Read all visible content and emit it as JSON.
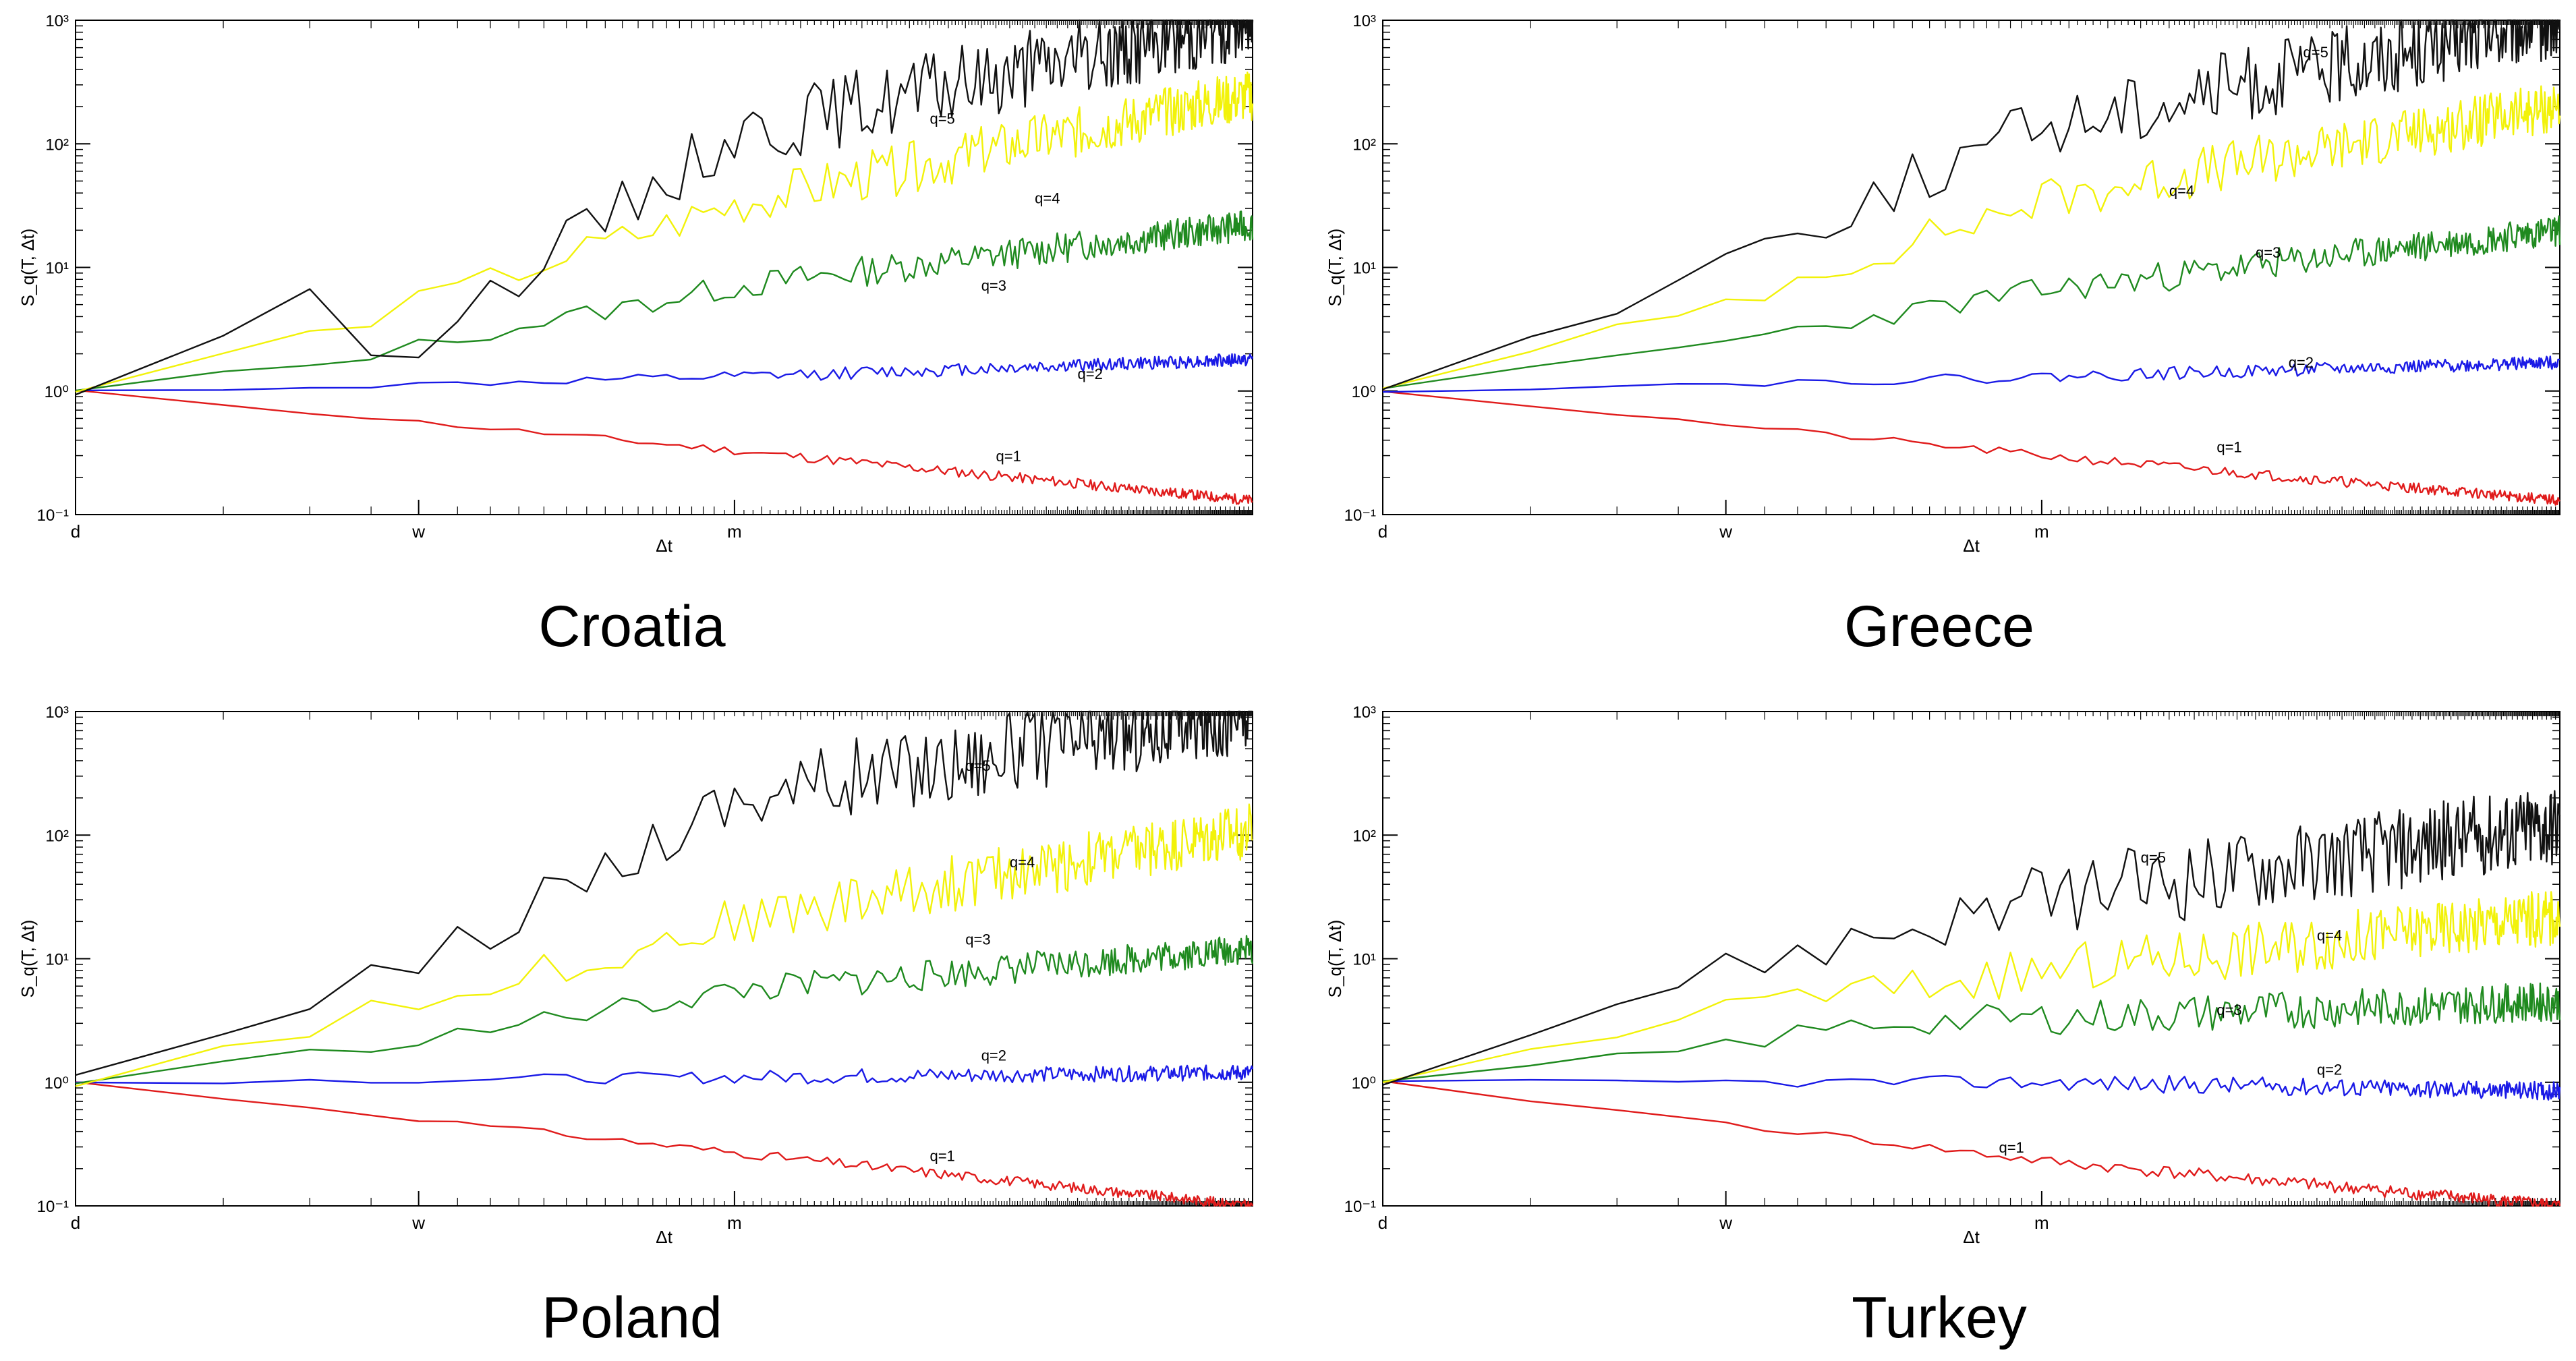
{
  "figure": {
    "panels_order": [
      "Croatia",
      "Greece",
      "Poland",
      "Turkey"
    ]
  },
  "chart_data": [
    {
      "type": "line",
      "country": "Croatia",
      "title": "Croatia",
      "xlabel": "Δt",
      "ylabel": "S_q(T, Δt)",
      "yscale": "log",
      "ylim": [
        0.1,
        1000
      ],
      "ytick_labels": [
        "10⁻¹",
        "10⁰",
        "10¹",
        "10²",
        "10³"
      ],
      "xticks": [
        {
          "label": "d",
          "value": 1
        },
        {
          "label": "w",
          "value": 5
        },
        {
          "label": "m",
          "value": 22
        }
      ],
      "xlim": [
        1,
        250
      ],
      "grid": false,
      "series": [
        {
          "name": "q=1",
          "color": "#e01b1b",
          "label_at": [
            75,
            0.27
          ],
          "points": [
            [
              1,
              1.0
            ],
            [
              22,
              0.33
            ],
            [
              250,
              0.13
            ]
          ],
          "noise": 0.04,
          "seed": 11
        },
        {
          "name": "q=2",
          "color": "#1a1ae6",
          "label_at": [
            110,
            1.25
          ],
          "points": [
            [
              1,
              1.0
            ],
            [
              4,
              1.1
            ],
            [
              22,
              1.3
            ],
            [
              250,
              1.8
            ]
          ],
          "noise": 0.05,
          "seed": 12
        },
        {
          "name": "q=3",
          "color": "#1f8a1f",
          "label_at": [
            70,
            6.5
          ],
          "points": [
            [
              1,
              1.0
            ],
            [
              3,
              1.6
            ],
            [
              22,
              7.0
            ],
            [
              250,
              22
            ]
          ],
          "noise": 0.12,
          "seed": 13
        },
        {
          "name": "q=4",
          "color": "#f2f20a",
          "label_at": [
            90,
            33
          ],
          "points": [
            [
              1,
              1.0
            ],
            [
              3,
              2.8
            ],
            [
              22,
              32
            ],
            [
              250,
              250
            ]
          ],
          "noise": 0.2,
          "seed": 14
        },
        {
          "name": "q=5",
          "color": "#111111",
          "label_at": [
            55,
            145
          ],
          "points": [
            [
              1,
              1.0
            ],
            [
              3,
              5.2
            ],
            [
              4.5,
              2.0
            ],
            [
              22,
              120
            ],
            [
              250,
              1000
            ]
          ],
          "noise": 0.3,
          "seed": 15
        }
      ]
    },
    {
      "type": "line",
      "country": "Greece",
      "title": "Greece",
      "xlabel": "Δt",
      "ylabel": "S_q(T, Δt)",
      "yscale": "log",
      "ylim": [
        0.1,
        1000
      ],
      "ytick_labels": [
        "10⁻¹",
        "10⁰",
        "10¹",
        "10²",
        "10³"
      ],
      "xticks": [
        {
          "label": "d",
          "value": 1
        },
        {
          "label": "w",
          "value": 5
        },
        {
          "label": "m",
          "value": 22
        }
      ],
      "xlim": [
        1,
        250
      ],
      "grid": false,
      "series": [
        {
          "name": "q=1",
          "color": "#e01b1b",
          "label_at": [
            50,
            0.32
          ],
          "points": [
            [
              1,
              1.0
            ],
            [
              22,
              0.3
            ],
            [
              250,
              0.13
            ]
          ],
          "noise": 0.04,
          "seed": 21
        },
        {
          "name": "q=2",
          "color": "#1a1ae6",
          "label_at": [
            70,
            1.55
          ],
          "points": [
            [
              1,
              1.0
            ],
            [
              22,
              1.3
            ],
            [
              250,
              1.7
            ]
          ],
          "noise": 0.05,
          "seed": 22
        },
        {
          "name": "q=3",
          "color": "#1f8a1f",
          "label_at": [
            60,
            12
          ],
          "points": [
            [
              1,
              1.0
            ],
            [
              4,
              2.2
            ],
            [
              22,
              6.5
            ],
            [
              250,
              20
            ]
          ],
          "noise": 0.12,
          "seed": 23
        },
        {
          "name": "q=4",
          "color": "#f2f20a",
          "label_at": [
            40,
            38
          ],
          "points": [
            [
              1,
              1.0
            ],
            [
              4,
              4.0
            ],
            [
              22,
              35
            ],
            [
              250,
              200
            ]
          ],
          "noise": 0.2,
          "seed": 24
        },
        {
          "name": "q=5",
          "color": "#111111",
          "label_at": [
            75,
            500
          ],
          "points": [
            [
              1,
              1.0
            ],
            [
              4,
              8.0
            ],
            [
              22,
              140
            ],
            [
              250,
              1000
            ]
          ],
          "noise": 0.3,
          "seed": 25
        }
      ]
    },
    {
      "type": "line",
      "country": "Poland",
      "title": "Poland",
      "xlabel": "Δt",
      "ylabel": "S_q(T, Δt)",
      "yscale": "log",
      "ylim": [
        0.1,
        1000
      ],
      "ytick_labels": [
        "10⁻¹",
        "10⁰",
        "10¹",
        "10²",
        "10³"
      ],
      "xticks": [
        {
          "label": "d",
          "value": 1
        },
        {
          "label": "w",
          "value": 5
        },
        {
          "label": "m",
          "value": 22
        }
      ],
      "xlim": [
        1,
        250
      ],
      "grid": false,
      "series": [
        {
          "name": "q=1",
          "color": "#e01b1b",
          "label_at": [
            55,
            0.23
          ],
          "points": [
            [
              1,
              1.0
            ],
            [
              22,
              0.27
            ],
            [
              250,
              0.1
            ]
          ],
          "noise": 0.04,
          "seed": 31
        },
        {
          "name": "q=2",
          "color": "#1a1ae6",
          "label_at": [
            70,
            1.5
          ],
          "points": [
            [
              1,
              1.0
            ],
            [
              22,
              1.1
            ],
            [
              250,
              1.2
            ]
          ],
          "noise": 0.06,
          "seed": 32
        },
        {
          "name": "q=3",
          "color": "#1f8a1f",
          "label_at": [
            65,
            13
          ],
          "points": [
            [
              1,
              1.0
            ],
            [
              5,
              2.2
            ],
            [
              22,
              5.5
            ],
            [
              250,
              12
            ]
          ],
          "noise": 0.12,
          "seed": 33
        },
        {
          "name": "q=4",
          "color": "#f2f20a",
          "label_at": [
            80,
            55
          ],
          "points": [
            [
              1,
              1.0
            ],
            [
              5,
              4.5
            ],
            [
              22,
              20
            ],
            [
              250,
              110
            ]
          ],
          "noise": 0.22,
          "seed": 34
        },
        {
          "name": "q=5",
          "color": "#111111",
          "label_at": [
            65,
            330
          ],
          "points": [
            [
              1,
              1.0
            ],
            [
              5,
              9
            ],
            [
              22,
              200
            ],
            [
              250,
              1000
            ]
          ],
          "noise": 0.32,
          "seed": 35
        }
      ]
    },
    {
      "type": "line",
      "country": "Turkey",
      "title": "Turkey",
      "xlabel": "Δt",
      "ylabel": "S_q(T, Δt)",
      "yscale": "log",
      "ylim": [
        0.1,
        1000
      ],
      "ytick_labels": [
        "10⁻¹",
        "10⁰",
        "10¹",
        "10²",
        "10³"
      ],
      "xticks": [
        {
          "label": "d",
          "value": 1
        },
        {
          "label": "w",
          "value": 5
        },
        {
          "label": "m",
          "value": 22
        }
      ],
      "xlim": [
        1,
        250
      ],
      "grid": false,
      "series": [
        {
          "name": "q=1",
          "color": "#e01b1b",
          "label_at": [
            18,
            0.27
          ],
          "points": [
            [
              1,
              1.0
            ],
            [
              22,
              0.23
            ],
            [
              250,
              0.1
            ]
          ],
          "noise": 0.05,
          "seed": 41
        },
        {
          "name": "q=2",
          "color": "#1a1ae6",
          "label_at": [
            80,
            1.15
          ],
          "points": [
            [
              1,
              1.0
            ],
            [
              22,
              1.0
            ],
            [
              250,
              0.85
            ]
          ],
          "noise": 0.07,
          "seed": 42
        },
        {
          "name": "q=3",
          "color": "#1f8a1f",
          "label_at": [
            50,
            3.5
          ],
          "points": [
            [
              1,
              1.0
            ],
            [
              3,
              1.5
            ],
            [
              10,
              3
            ],
            [
              250,
              4.5
            ]
          ],
          "noise": 0.15,
          "seed": 43
        },
        {
          "name": "q=4",
          "color": "#f2f20a",
          "label_at": [
            80,
            14
          ],
          "points": [
            [
              1,
              1.0
            ],
            [
              3,
              2.6
            ],
            [
              6,
              4.5
            ],
            [
              250,
              22
            ]
          ],
          "noise": 0.22,
          "seed": 44
        },
        {
          "name": "q=5",
          "color": "#111111",
          "label_at": [
            35,
            60
          ],
          "points": [
            [
              1,
              1.0
            ],
            [
              3,
              4.5
            ],
            [
              6,
              10
            ],
            [
              22,
              30
            ],
            [
              250,
              120
            ]
          ],
          "noise": 0.32,
          "seed": 45
        }
      ]
    }
  ]
}
